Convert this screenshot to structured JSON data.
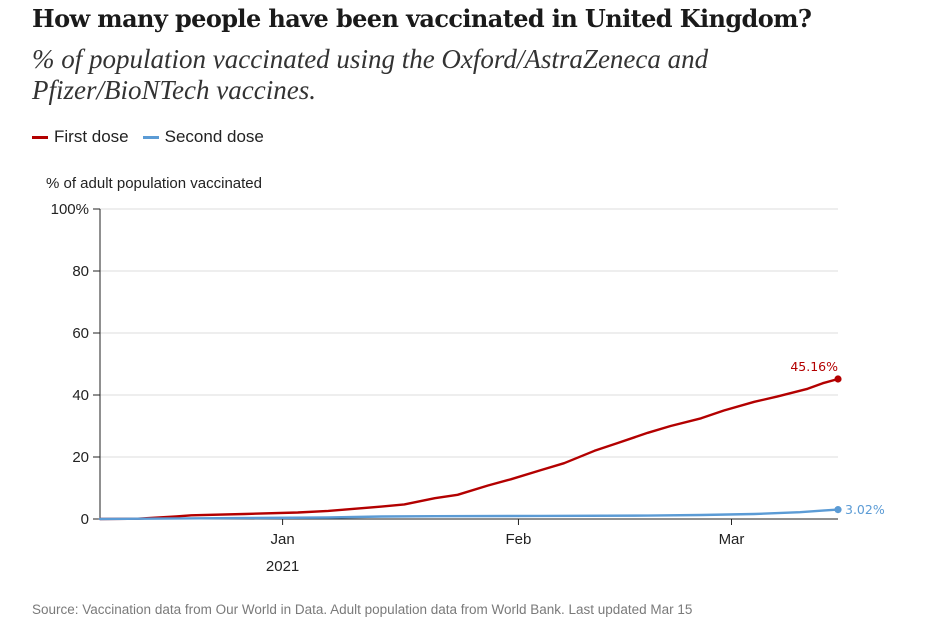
{
  "title": "How many people have been vaccinated in United Kingdom?",
  "subtitle": "% of population vaccinated using the Oxford/AstraZeneca and Pfizer/BioNTech vaccines.",
  "legend": [
    {
      "label": "First dose",
      "color": "#b30000"
    },
    {
      "label": "Second dose",
      "color": "#5b9bd5"
    }
  ],
  "source": "Source: Vaccination data from Our World in Data. Adult population data from World Bank. Last updated Mar 15",
  "chart_data": {
    "type": "line",
    "ylabel": "% of adult population vaccinated",
    "ylim": [
      0,
      100
    ],
    "yticks": [
      {
        "value": 0,
        "label": "0"
      },
      {
        "value": 20,
        "label": "20"
      },
      {
        "value": 40,
        "label": "40"
      },
      {
        "value": 60,
        "label": "60"
      },
      {
        "value": 80,
        "label": "80"
      },
      {
        "value": 100,
        "label": "100%"
      }
    ],
    "xlim": [
      "2020-12-08",
      "2021-03-15"
    ],
    "xticks": [
      {
        "date": "2021-01-01",
        "label": "Jan",
        "sublabel": "2021"
      },
      {
        "date": "2021-02-01",
        "label": "Feb",
        "sublabel": ""
      },
      {
        "date": "2021-03-01",
        "label": "Mar",
        "sublabel": ""
      }
    ],
    "grid": true,
    "series": [
      {
        "name": "First dose",
        "color": "#b30000",
        "end_label": "45.16%",
        "points": [
          [
            "2020-12-08",
            0.0
          ],
          [
            "2020-12-13",
            0.1
          ],
          [
            "2020-12-18",
            0.8
          ],
          [
            "2020-12-20",
            1.2
          ],
          [
            "2020-12-27",
            1.6
          ],
          [
            "2021-01-03",
            2.1
          ],
          [
            "2021-01-07",
            2.6
          ],
          [
            "2021-01-10",
            3.2
          ],
          [
            "2021-01-14",
            4.0
          ],
          [
            "2021-01-17",
            4.7
          ],
          [
            "2021-01-21",
            6.7
          ],
          [
            "2021-01-24",
            7.8
          ],
          [
            "2021-01-28",
            10.8
          ],
          [
            "2021-01-31",
            12.8
          ],
          [
            "2021-02-04",
            15.8
          ],
          [
            "2021-02-07",
            18.0
          ],
          [
            "2021-02-11",
            22.0
          ],
          [
            "2021-02-14",
            24.5
          ],
          [
            "2021-02-18",
            27.8
          ],
          [
            "2021-02-21",
            30.0
          ],
          [
            "2021-02-25",
            32.5
          ],
          [
            "2021-02-28",
            35.0
          ],
          [
            "2021-03-04",
            37.8
          ],
          [
            "2021-03-07",
            39.5
          ],
          [
            "2021-03-11",
            42.0
          ],
          [
            "2021-03-13",
            43.8
          ],
          [
            "2021-03-15",
            45.16
          ]
        ]
      },
      {
        "name": "Second dose",
        "color": "#5b9bd5",
        "end_label": "3.02%",
        "points": [
          [
            "2020-12-08",
            0.0
          ],
          [
            "2021-01-07",
            0.5
          ],
          [
            "2021-01-14",
            0.8
          ],
          [
            "2021-01-21",
            0.9
          ],
          [
            "2021-02-04",
            1.0
          ],
          [
            "2021-02-18",
            1.1
          ],
          [
            "2021-02-25",
            1.3
          ],
          [
            "2021-03-04",
            1.6
          ],
          [
            "2021-03-10",
            2.2
          ],
          [
            "2021-03-13",
            2.7
          ],
          [
            "2021-03-15",
            3.02
          ]
        ]
      }
    ]
  }
}
